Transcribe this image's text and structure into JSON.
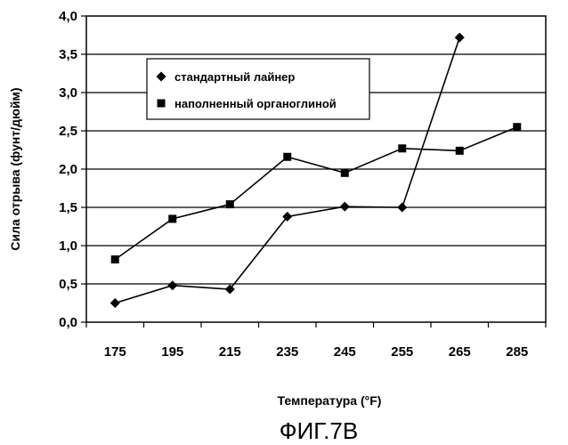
{
  "chart_data": {
    "type": "line",
    "title": "",
    "xlabel": "Температура (°F)",
    "ylabel": "Сила отрыва (фунт/дюйм)",
    "categories": [
      "175",
      "195",
      "215",
      "235",
      "245",
      "255",
      "265",
      "285"
    ],
    "ylim": [
      0,
      4
    ],
    "yticks": [
      "0,0",
      "0,5",
      "1,0",
      "1,5",
      "2,0",
      "2,5",
      "3,0",
      "3,5",
      "4,0"
    ],
    "grid": true,
    "legend_position": "top-left",
    "series": [
      {
        "name": "стандартный лайнер",
        "marker": "diamond",
        "values": [
          0.25,
          0.48,
          0.43,
          1.38,
          1.51,
          1.5,
          3.72,
          null
        ]
      },
      {
        "name": "наполненный органоглиной",
        "marker": "square",
        "values": [
          0.82,
          1.35,
          1.54,
          2.16,
          1.95,
          2.27,
          2.24,
          2.55
        ]
      }
    ],
    "caption": "ФИГ.7В"
  }
}
